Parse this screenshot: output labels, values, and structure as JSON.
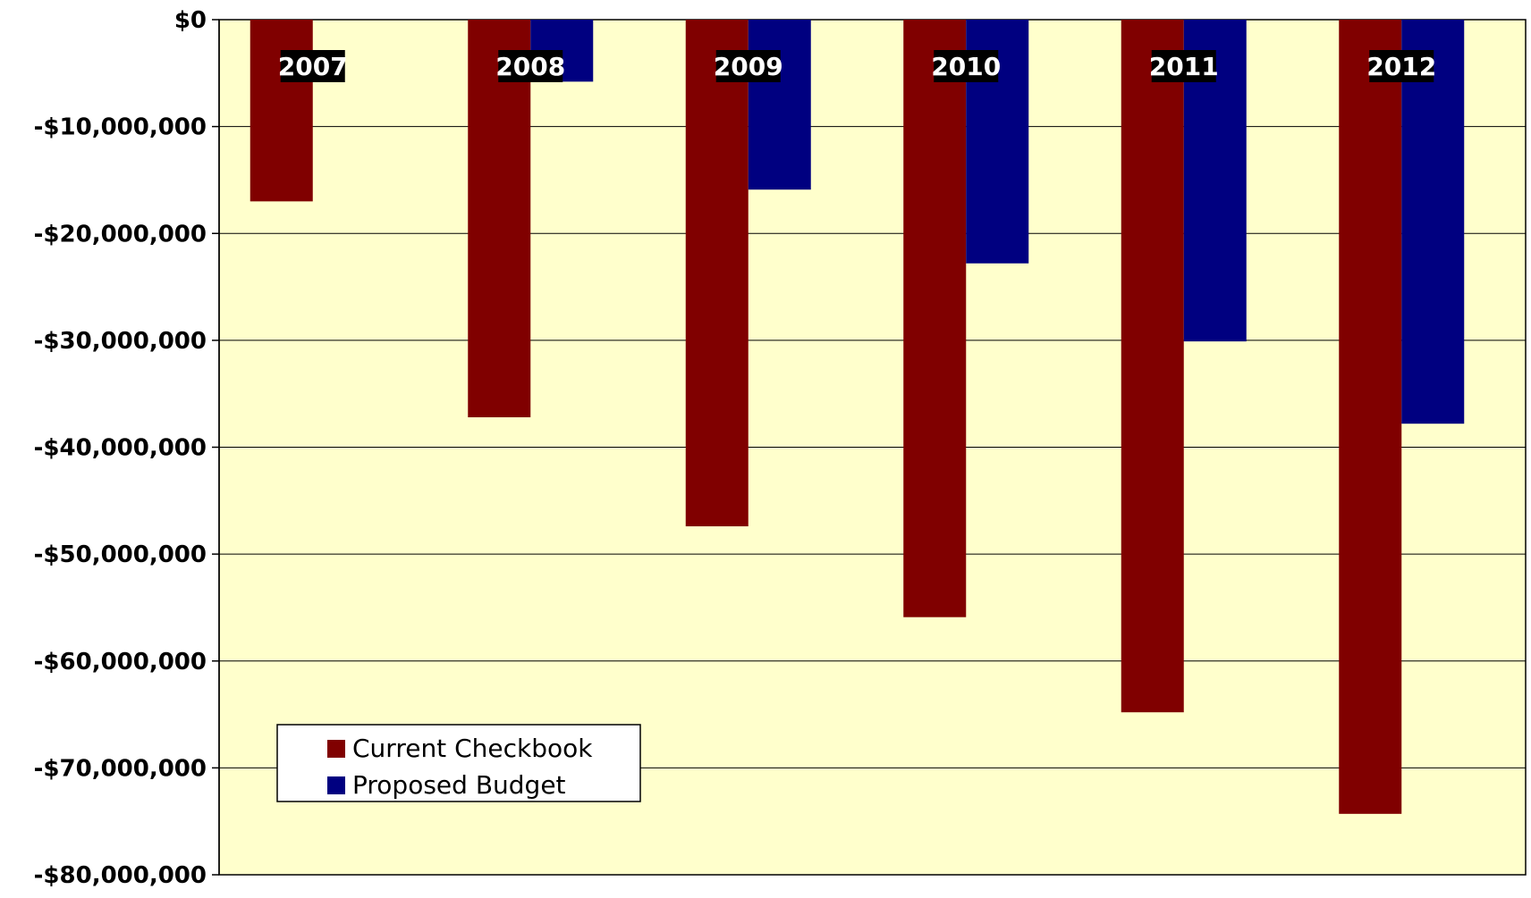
{
  "chart_data": {
    "type": "bar",
    "title": "",
    "xlabel": "",
    "ylabel": "",
    "categories": [
      "2007",
      "2008",
      "2009",
      "2010",
      "2011",
      "2012"
    ],
    "series": [
      {
        "name": "Current Checkbook",
        "color": "#800000",
        "values": [
          -17000000,
          -37200000,
          -47400000,
          -55900000,
          -64800000,
          -74300000
        ]
      },
      {
        "name": "Proposed Budget",
        "color": "#000080",
        "values": [
          0,
          -5800000,
          -15900000,
          -22800000,
          -30100000,
          -37800000
        ]
      }
    ],
    "ylim": [
      -80000000,
      0
    ],
    "yticks": [
      0,
      -10000000,
      -20000000,
      -30000000,
      -40000000,
      -50000000,
      -60000000,
      -70000000,
      -80000000
    ],
    "ytick_labels": [
      "$0",
      "-$10,000,000",
      "-$20,000,000",
      "-$30,000,000",
      "-$40,000,000",
      "-$50,000,000",
      "-$60,000,000",
      "-$70,000,000",
      "-$80,000,000"
    ],
    "grid": true,
    "legend_position": "bottom-left",
    "plot_background": "#ffffcc",
    "category_label_background": "#000000",
    "category_label_color": "#ffffff"
  }
}
